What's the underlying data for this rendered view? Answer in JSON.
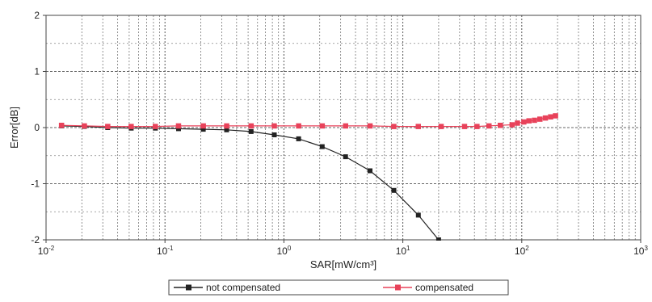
{
  "chart_data": {
    "type": "line",
    "title": "",
    "xlabel": "SAR[mW/cm³]",
    "ylabel": "Error[dB]",
    "x_scale": "log",
    "xlim": [
      0.01,
      1000
    ],
    "ylim": [
      -2,
      2
    ],
    "grid": true,
    "legend_position": "bottom",
    "x_ticks": [
      {
        "value": 0.01,
        "base": "10",
        "exp": "-2"
      },
      {
        "value": 0.1,
        "base": "10",
        "exp": "-1"
      },
      {
        "value": 1,
        "base": "10",
        "exp": "0"
      },
      {
        "value": 10,
        "base": "10",
        "exp": "1"
      },
      {
        "value": 100,
        "base": "10",
        "exp": "2"
      },
      {
        "value": 1000,
        "base": "10",
        "exp": "3"
      }
    ],
    "y_ticks": [
      {
        "value": -2,
        "label": "-2"
      },
      {
        "value": -1,
        "label": "-1"
      },
      {
        "value": 0,
        "label": "0"
      },
      {
        "value": 1,
        "label": "1"
      },
      {
        "value": 2,
        "label": "2"
      }
    ],
    "series": [
      {
        "name": "not compensated",
        "color": "#222222",
        "marker": "square",
        "x": [
          0.0135,
          0.021,
          0.033,
          0.052,
          0.083,
          0.13,
          0.21,
          0.33,
          0.53,
          0.83,
          1.33,
          2.1,
          3.3,
          5.3,
          8.4,
          13.5,
          20
        ],
        "y": [
          0.03,
          0.02,
          0.0,
          -0.01,
          -0.01,
          -0.02,
          -0.03,
          -0.04,
          -0.07,
          -0.13,
          -0.2,
          -0.34,
          -0.52,
          -0.77,
          -1.12,
          -1.56,
          -2.0
        ]
      },
      {
        "name": "compensated",
        "color": "#e8425a",
        "marker": "square",
        "x": [
          0.0135,
          0.021,
          0.033,
          0.052,
          0.083,
          0.13,
          0.21,
          0.33,
          0.53,
          0.83,
          1.33,
          2.1,
          3.3,
          5.3,
          8.4,
          13.5,
          21,
          33,
          42,
          53,
          66,
          83,
          92,
          104,
          115,
          128,
          142,
          158,
          175,
          192
        ],
        "y": [
          0.04,
          0.03,
          0.02,
          0.02,
          0.02,
          0.03,
          0.03,
          0.03,
          0.03,
          0.03,
          0.03,
          0.03,
          0.03,
          0.03,
          0.02,
          0.02,
          0.02,
          0.02,
          0.02,
          0.03,
          0.04,
          0.05,
          0.08,
          0.1,
          0.12,
          0.13,
          0.15,
          0.17,
          0.19,
          0.21
        ]
      }
    ]
  }
}
